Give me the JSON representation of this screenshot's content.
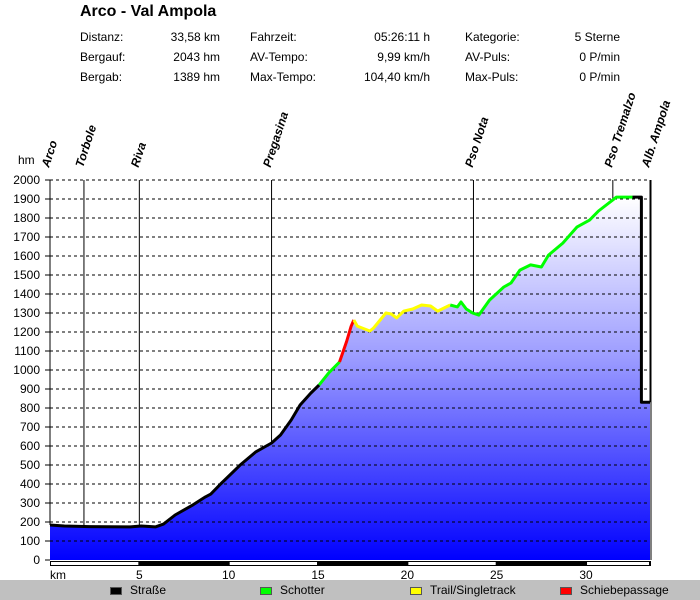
{
  "header": {
    "title": "Arco - Val Ampola",
    "stats": [
      {
        "label": "Distanz:",
        "value": "33,58 km"
      },
      {
        "label": "Bergauf:",
        "value": "2043 hm"
      },
      {
        "label": "Bergab:",
        "value": "1389 hm"
      },
      {
        "label": "Fahrzeit:",
        "value": "05:26:11 h"
      },
      {
        "label": "AV-Tempo:",
        "value": "9,99 km/h"
      },
      {
        "label": "Max-Tempo:",
        "value": "104,40 km/h"
      },
      {
        "label": "Kategorie:",
        "value": "5 Sterne"
      },
      {
        "label": "AV-Puls:",
        "value": "0 P/min"
      },
      {
        "label": "Max-Puls:",
        "value": "0 P/min"
      }
    ]
  },
  "legend": [
    {
      "label": "Straße",
      "color": "#000000"
    },
    {
      "label": "Schotter",
      "color": "#00ff00"
    },
    {
      "label": "Trail/Singletrack",
      "color": "#ffff00"
    },
    {
      "label": "Schiebepassage",
      "color": "#ff0000"
    }
  ],
  "chart_data": {
    "type": "area",
    "title": "Arco - Val Ampola",
    "xlabel": "km",
    "ylabel": "hm",
    "xlim": [
      0,
      33.58
    ],
    "ylim": [
      0,
      2000
    ],
    "xticks": [
      5,
      10,
      15,
      20,
      25,
      30
    ],
    "yticks": [
      0,
      100,
      200,
      300,
      400,
      500,
      600,
      700,
      800,
      900,
      1000,
      1100,
      1200,
      1300,
      1400,
      1500,
      1600,
      1700,
      1800,
      1900,
      2000
    ],
    "grid": "horizontal dashed",
    "legend_placement": "bottom",
    "fill_colors": [
      "#0000ff",
      "#ffffff"
    ],
    "waypoints": [
      {
        "name": "Arco",
        "km": 0
      },
      {
        "name": "Torbole",
        "km": 1.9
      },
      {
        "name": "Riva",
        "km": 5.0
      },
      {
        "name": "Pregasina",
        "km": 12.4
      },
      {
        "name": "Pso Nota",
        "km": 23.7
      },
      {
        "name": "Pso Tremalzo",
        "km": 31.5
      },
      {
        "name": "Alb. Ampola",
        "km": 33.58
      }
    ],
    "segments": [
      {
        "surface": "Straße",
        "color": "#000000",
        "points": [
          [
            0,
            184
          ],
          [
            0.8,
            179
          ],
          [
            2.2,
            176
          ],
          [
            4.5,
            174
          ],
          [
            5.1,
            179
          ],
          [
            5.9,
            174
          ],
          [
            6.35,
            189
          ],
          [
            7.0,
            237
          ],
          [
            8.0,
            290
          ],
          [
            8.7,
            332
          ],
          [
            9.0,
            347
          ],
          [
            9.55,
            400
          ],
          [
            10.7,
            505
          ],
          [
            11.5,
            568
          ],
          [
            12.4,
            616
          ],
          [
            12.9,
            658
          ],
          [
            13.5,
            737
          ],
          [
            14.0,
            816
          ],
          [
            14.6,
            879
          ],
          [
            15.06,
            921
          ]
        ]
      },
      {
        "surface": "Schotter",
        "color": "#00ff00",
        "points": [
          [
            15.06,
            921
          ],
          [
            15.6,
            985
          ],
          [
            16.2,
            1042
          ]
        ]
      },
      {
        "surface": "Schiebepassage",
        "color": "#ff0000",
        "points": [
          [
            16.2,
            1042
          ],
          [
            16.6,
            1150
          ],
          [
            16.85,
            1230
          ],
          [
            17.0,
            1263
          ]
        ]
      },
      {
        "surface": "Trail/Singletrack",
        "color": "#ffff00",
        "points": [
          [
            17.0,
            1263
          ],
          [
            17.2,
            1231
          ],
          [
            17.9,
            1205
          ],
          [
            18.1,
            1220
          ],
          [
            18.8,
            1300
          ],
          [
            19.1,
            1295
          ],
          [
            19.4,
            1274
          ],
          [
            19.8,
            1310
          ],
          [
            20.3,
            1321
          ],
          [
            20.8,
            1342
          ],
          [
            21.3,
            1337
          ],
          [
            21.7,
            1310
          ],
          [
            22.4,
            1342
          ]
        ]
      },
      {
        "surface": "Schotter",
        "color": "#00ff00",
        "points": [
          [
            22.4,
            1342
          ],
          [
            22.8,
            1332
          ],
          [
            23.0,
            1358
          ],
          [
            23.3,
            1321
          ],
          [
            23.65,
            1300
          ],
          [
            24.0,
            1289
          ],
          [
            24.6,
            1368
          ],
          [
            25.4,
            1437
          ],
          [
            25.8,
            1458
          ],
          [
            26.3,
            1526
          ],
          [
            26.9,
            1553
          ],
          [
            27.5,
            1542
          ],
          [
            27.9,
            1605
          ],
          [
            28.7,
            1668
          ],
          [
            29.5,
            1753
          ],
          [
            30.2,
            1789
          ],
          [
            30.7,
            1837
          ],
          [
            31.5,
            1895
          ],
          [
            31.7,
            1910
          ],
          [
            32.6,
            1910
          ]
        ]
      },
      {
        "surface": "Straße",
        "color": "#000000",
        "points": [
          [
            32.6,
            1910
          ],
          [
            33.1,
            1910
          ],
          [
            33.1,
            830
          ],
          [
            33.58,
            830
          ]
        ]
      }
    ]
  }
}
